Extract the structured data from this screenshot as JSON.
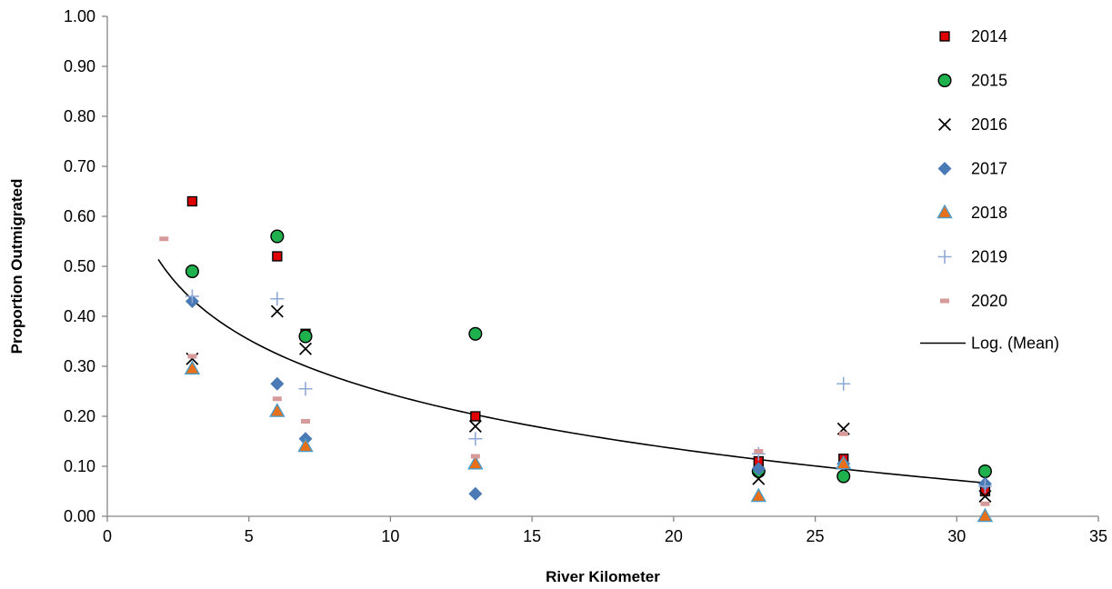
{
  "chart_data": {
    "type": "scatter",
    "title": "",
    "xlabel": "River Kilometer",
    "ylabel": "Proportion Outmigrated",
    "xlim": [
      0,
      35
    ],
    "ylim": [
      0,
      1
    ],
    "x_ticks": [
      0,
      5,
      10,
      15,
      20,
      25,
      30,
      35
    ],
    "x_tick_labels": [
      "0",
      "5",
      "10",
      "15",
      "20",
      "25",
      "30",
      "35"
    ],
    "y_ticks": [
      0,
      0.1,
      0.2,
      0.3,
      0.4,
      0.5,
      0.6,
      0.7,
      0.8,
      0.9,
      1.0
    ],
    "y_tick_labels": [
      "0.00",
      "0.10",
      "0.20",
      "0.30",
      "0.40",
      "0.50",
      "0.60",
      "0.70",
      "0.80",
      "0.90",
      "1.00"
    ],
    "grid": false,
    "legend_position": "right",
    "series": [
      {
        "name": "2014",
        "marker": "square",
        "color": "#e00000",
        "stroke": "#000000",
        "points": [
          [
            3,
            0.63
          ],
          [
            6,
            0.52
          ],
          [
            7,
            0.365
          ],
          [
            13,
            0.2
          ],
          [
            23,
            0.11
          ],
          [
            26,
            0.115
          ],
          [
            31,
            0.05
          ]
        ]
      },
      {
        "name": "2015",
        "marker": "circle",
        "color": "#1fb14d",
        "stroke": "#000000",
        "points": [
          [
            3,
            0.49
          ],
          [
            6,
            0.56
          ],
          [
            7,
            0.36
          ],
          [
            13,
            0.365
          ],
          [
            23,
            0.09
          ],
          [
            26,
            0.08
          ],
          [
            31,
            0.09
          ]
        ]
      },
      {
        "name": "2016",
        "marker": "x",
        "color": "#000000",
        "points": [
          [
            3,
            0.315
          ],
          [
            6,
            0.41
          ],
          [
            7,
            0.335
          ],
          [
            13,
            0.18
          ],
          [
            23,
            0.075
          ],
          [
            26,
            0.175
          ],
          [
            31,
            0.04
          ]
        ]
      },
      {
        "name": "2017",
        "marker": "diamond",
        "color": "#4a7ab5",
        "points": [
          [
            3,
            0.43
          ],
          [
            6,
            0.265
          ],
          [
            7,
            0.155
          ],
          [
            13,
            0.045
          ],
          [
            23,
            0.095
          ],
          [
            26,
            0.105
          ],
          [
            31,
            0.065
          ]
        ]
      },
      {
        "name": "2018",
        "marker": "triangle",
        "color": "#e8701a",
        "stroke": "#4a9cc8",
        "points": [
          [
            3,
            0.295
          ],
          [
            6,
            0.21
          ],
          [
            7,
            0.14
          ],
          [
            13,
            0.105
          ],
          [
            23,
            0.04
          ],
          [
            26,
            0.105
          ],
          [
            31,
            0.0
          ]
        ]
      },
      {
        "name": "2019",
        "marker": "plus",
        "color": "#8fa9d6",
        "points": [
          [
            3,
            0.44
          ],
          [
            6,
            0.435
          ],
          [
            7,
            0.255
          ],
          [
            13,
            0.155
          ],
          [
            23,
            0.125
          ],
          [
            26,
            0.265
          ],
          [
            31,
            0.06
          ]
        ]
      },
      {
        "name": "2020",
        "marker": "dash",
        "color": "#d79a9a",
        "points": [
          [
            2,
            0.555
          ],
          [
            3,
            0.32
          ],
          [
            6,
            0.235
          ],
          [
            7,
            0.19
          ],
          [
            13,
            0.12
          ],
          [
            23,
            0.13
          ],
          [
            26,
            0.165
          ],
          [
            31,
            0.025
          ]
        ]
      }
    ],
    "trendline": {
      "name": "Log. (Mean)",
      "type": "logarithmic",
      "color": "#000000",
      "x_range": [
        1.8,
        31
      ],
      "a": 0.606,
      "b": -0.157
    }
  }
}
